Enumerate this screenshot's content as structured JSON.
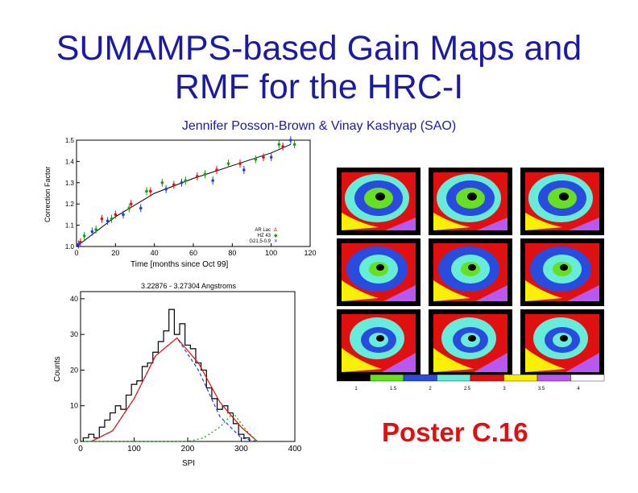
{
  "title": {
    "line1": "SUMAMPS-based Gain Maps and",
    "line2": "RMF for the HRC-I"
  },
  "authors": "Jennifer Posson-Brown & Vinay Kashyap (SAO)",
  "poster_label": "Poster C.16",
  "chart_data": [
    {
      "type": "scatter",
      "title": "",
      "xlabel": "Time [months since Oct 99]",
      "ylabel": "Correction Factor",
      "xlim": [
        0,
        120
      ],
      "ylim": [
        1.0,
        1.5
      ],
      "xticks": [
        "0",
        "20",
        "40",
        "60",
        "80",
        "100",
        "120"
      ],
      "yticks": [
        "1.0",
        "1.1",
        "1.2",
        "1.3",
        "1.4",
        "1.5"
      ],
      "legend_position": "bottom-right",
      "series": [
        {
          "name": "AR Lac",
          "color": "#e01010",
          "x": [
            2,
            13,
            20,
            28,
            38,
            50,
            62,
            72,
            84,
            96,
            106
          ],
          "y": [
            1.02,
            1.13,
            1.15,
            1.2,
            1.26,
            1.29,
            1.33,
            1.36,
            1.39,
            1.42,
            1.47
          ]
        },
        {
          "name": "HZ 43",
          "color": "#10a010",
          "x": [
            4,
            10,
            18,
            27,
            36,
            44,
            56,
            66,
            78,
            92,
            104,
            112
          ],
          "y": [
            1.05,
            1.08,
            1.13,
            1.18,
            1.26,
            1.3,
            1.31,
            1.34,
            1.39,
            1.41,
            1.48,
            1.48
          ]
        },
        {
          "name": "G21.5-0.9",
          "color": "#2040e0",
          "x": [
            1,
            8,
            16,
            24,
            33,
            46,
            54,
            70,
            86,
            100,
            110
          ],
          "y": [
            1.01,
            1.07,
            1.12,
            1.15,
            1.18,
            1.27,
            1.3,
            1.31,
            1.36,
            1.42,
            1.5
          ]
        }
      ],
      "fit": {
        "x": [
          0,
          20,
          40,
          60,
          80,
          100,
          110
        ],
        "y": [
          1.0,
          1.14,
          1.25,
          1.32,
          1.38,
          1.44,
          1.48
        ]
      }
    },
    {
      "type": "line",
      "title": "3.22876 - 3.27304 Angstroms",
      "xlabel": "SPI",
      "ylabel": "Counts",
      "xlim": [
        0,
        400
      ],
      "ylim": [
        0,
        42
      ],
      "xticks": [
        "0",
        "100",
        "200",
        "300",
        "400"
      ],
      "yticks": [
        "0",
        "10",
        "20",
        "30",
        "40"
      ],
      "histogram": {
        "x": [
          10,
          20,
          30,
          40,
          50,
          60,
          70,
          80,
          90,
          100,
          110,
          120,
          130,
          140,
          150,
          160,
          170,
          180,
          190,
          200,
          210,
          220,
          230,
          240,
          250,
          260,
          270,
          280,
          290,
          300,
          310
        ],
        "y": [
          1,
          2,
          1,
          4,
          6,
          8,
          10,
          9,
          13,
          16,
          17,
          21,
          22,
          25,
          28,
          31,
          37,
          30,
          33,
          27,
          26,
          22,
          20,
          15,
          12,
          9,
          10,
          8,
          5,
          2,
          1
        ]
      },
      "model_total": {
        "x": [
          20,
          60,
          100,
          140,
          180,
          220,
          260,
          300,
          330
        ],
        "y": [
          0,
          3,
          12,
          24,
          29,
          22,
          11,
          4,
          0
        ]
      },
      "model_main": {
        "x": [
          20,
          60,
          100,
          140,
          180,
          220,
          260,
          300,
          330
        ],
        "y": [
          0,
          3,
          12,
          24,
          29,
          20,
          7,
          1,
          0
        ]
      },
      "model_secondary": {
        "x": [
          0,
          200,
          230,
          260,
          285,
          310,
          330
        ],
        "y": [
          0,
          0,
          1,
          4,
          8,
          3,
          0
        ]
      }
    }
  ],
  "gain_maps": {
    "rows": 3,
    "cols": 3,
    "colorbar": {
      "colors": [
        "#000000",
        "#66e022",
        "#2a4be0",
        "#66ecd8",
        "#e01010",
        "#f8f000",
        "#b858f0",
        "#ffffff"
      ],
      "tick_labels": [
        "1",
        "1.5",
        "2",
        "2.5",
        "3",
        "3.5",
        "4"
      ]
    }
  }
}
